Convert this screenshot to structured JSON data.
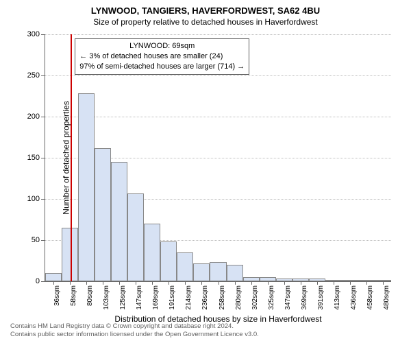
{
  "title": "LYNWOOD, TANGIERS, HAVERFORDWEST, SA62 4BU",
  "subtitle": "Size of property relative to detached houses in Haverfordwest",
  "chart": {
    "type": "histogram",
    "ylabel": "Number of detached properties",
    "xlabel": "Distribution of detached houses by size in Haverfordwest",
    "ymax": 300,
    "yticks": [
      0,
      50,
      100,
      150,
      200,
      250,
      300
    ],
    "xticks": [
      "36sqm",
      "58sqm",
      "80sqm",
      "103sqm",
      "125sqm",
      "147sqm",
      "169sqm",
      "191sqm",
      "214sqm",
      "236sqm",
      "258sqm",
      "280sqm",
      "302sqm",
      "325sqm",
      "347sqm",
      "369sqm",
      "391sqm",
      "413sqm",
      "436sqm",
      "458sqm",
      "480sqm"
    ],
    "values": [
      10,
      65,
      228,
      162,
      145,
      107,
      70,
      48,
      35,
      22,
      23,
      20,
      5,
      5,
      3,
      3,
      3,
      2,
      2,
      2,
      2
    ],
    "bar_color": "#d7e2f4",
    "bar_border": "#888888",
    "grid_color": "#bbbbbb",
    "reference_line": {
      "at_bar_index": 1,
      "fraction_into_bar": 0.55,
      "color": "#cc0000"
    },
    "annotation": {
      "title": "LYNWOOD: 69sqm",
      "line1": "← 3% of detached houses are smaller (24)",
      "line2": "97% of semi-detached houses are larger (714) →",
      "border_color": "#595959"
    }
  },
  "footer": {
    "line1": "Contains HM Land Registry data © Crown copyright and database right 2024.",
    "line2": "Contains public sector information licensed under the Open Government Licence v3.0."
  }
}
